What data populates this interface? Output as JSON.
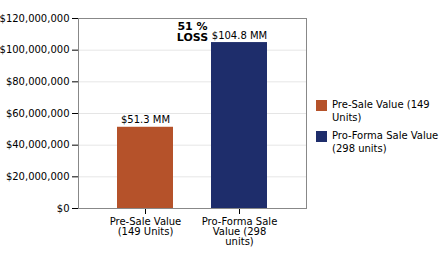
{
  "chart_data": {
    "type": "bar",
    "categories": [
      "Pre-Sale Value\n(149 Units)",
      "Pro-Forma Sale\nValue (298\nunits)"
    ],
    "values": [
      51300000,
      104800000
    ],
    "value_labels": [
      "$51.3 MM",
      "$104.8 MM"
    ],
    "data_labels": true,
    "colors": [
      "#b5522a",
      "#1e2d6b"
    ],
    "legend_labels": [
      "Pre-Sale Value (149 Units)",
      "Pro-Forma Sale Value\n(298 units)"
    ],
    "legend": "right",
    "annotations": [
      "51 %\nLOSS"
    ],
    "ylim": [
      0,
      120000000
    ],
    "yticks": [
      {
        "value": 0,
        "label": "$0"
      },
      {
        "value": 20000000,
        "label": "$20,000,000"
      },
      {
        "value": 40000000,
        "label": "$40,000,000"
      },
      {
        "value": 60000000,
        "label": "$60,000,000"
      },
      {
        "value": 80000000,
        "label": "$80,000,000"
      },
      {
        "value": 100000000,
        "label": "$100,000,000"
      },
      {
        "value": 120000000,
        "label": "$120,000,000"
      }
    ],
    "grid": true
  }
}
